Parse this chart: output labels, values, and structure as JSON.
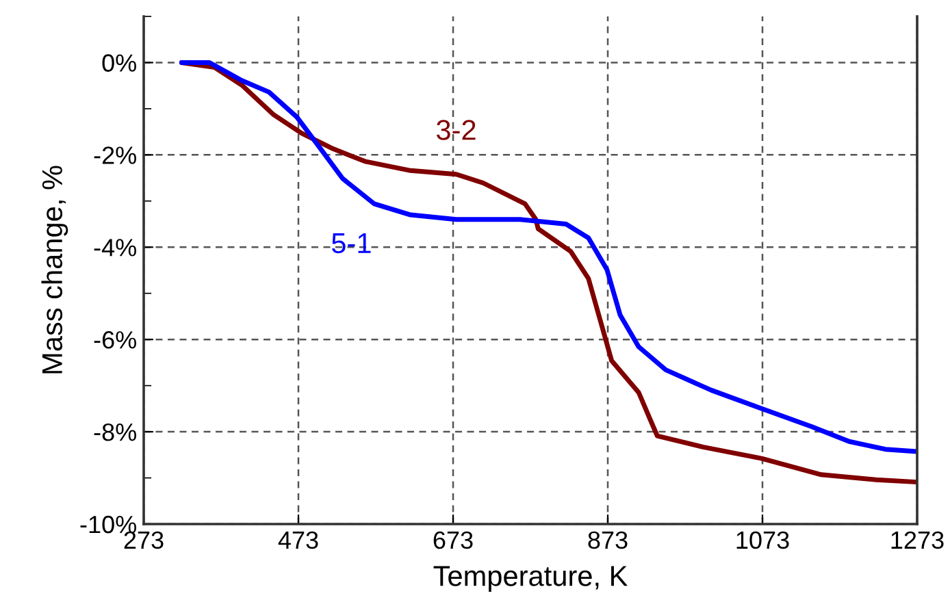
{
  "chart_data": {
    "type": "line",
    "xlabel": "Temperature, K",
    "ylabel": "Mass change, %",
    "xlim": [
      273,
      1273
    ],
    "xticks": [
      273,
      473,
      673,
      873,
      1073,
      1273
    ],
    "ylim": [
      -10,
      1
    ],
    "yticks": [
      {
        "value": -10,
        "label": "-10%"
      },
      {
        "value": -9,
        "label": null
      },
      {
        "value": -8,
        "label": "-8%"
      },
      {
        "value": -7,
        "label": null
      },
      {
        "value": -6,
        "label": "-6%"
      },
      {
        "value": -5,
        "label": null
      },
      {
        "value": -4,
        "label": "-4%"
      },
      {
        "value": -3,
        "label": null
      },
      {
        "value": -2,
        "label": "-2%"
      },
      {
        "value": -1,
        "label": null
      },
      {
        "value": 0,
        "label": "0%"
      },
      {
        "value": 1,
        "label": null
      }
    ],
    "grid": true,
    "legend": false,
    "marker": "none",
    "line_style": "solid",
    "series": [
      {
        "name": "3-2",
        "color": "#800000",
        "x": [
          322,
          364,
          400,
          441,
          477,
          518,
          559,
          618,
          677,
          712,
          766,
          780,
          783,
          825,
          848,
          863,
          878,
          913,
          928,
          937,
          996,
          1072,
          1149,
          1220,
          1273
        ],
        "values": [
          0,
          -0.1,
          -0.49,
          -1.13,
          -1.53,
          -1.87,
          -2.14,
          -2.34,
          -2.42,
          -2.61,
          -3.06,
          -3.4,
          -3.6,
          -4.09,
          -4.68,
          -5.57,
          -6.46,
          -7.15,
          -7.74,
          -8.09,
          -8.33,
          -8.58,
          -8.93,
          -9.04,
          -9.09
        ]
      },
      {
        "name": "5-1",
        "color": "#0000ff",
        "x": [
          322,
          358,
          400,
          435,
          471,
          500,
          530,
          571,
          618,
          677,
          760,
          819,
          848,
          872,
          889,
          913,
          948,
          1007,
          1072,
          1137,
          1185,
          1232,
          1273
        ],
        "values": [
          0,
          0,
          -0.39,
          -0.64,
          -1.18,
          -1.83,
          -2.51,
          -3.06,
          -3.3,
          -3.4,
          -3.4,
          -3.5,
          -3.8,
          -4.49,
          -5.47,
          -6.16,
          -6.66,
          -7.1,
          -7.5,
          -7.89,
          -8.21,
          -8.38,
          -8.43
        ]
      }
    ]
  }
}
